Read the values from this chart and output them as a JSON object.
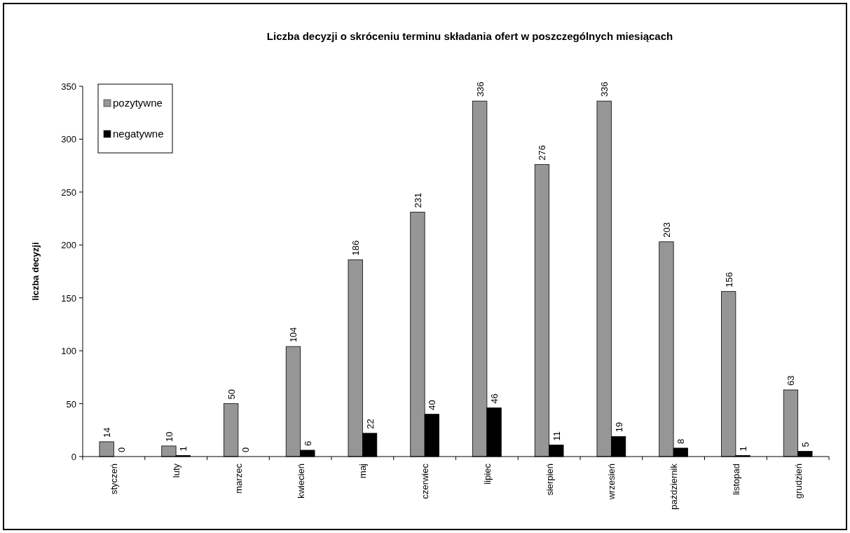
{
  "chart_data": {
    "type": "bar",
    "title": "Liczba decyzji o skróceniu terminu składania ofert w poszczególnych miesiącach",
    "ylabel": "liczba decyzji",
    "categories": [
      "styczeń",
      "luty",
      "marzec",
      "kwiecień",
      "maj",
      "czerwiec",
      "lipiec",
      "sierpień",
      "wrzesień",
      "październik",
      "listopad",
      "grudzień"
    ],
    "series": [
      {
        "name": "pozytywne",
        "color": "#969696",
        "values": [
          14,
          10,
          50,
          104,
          186,
          231,
          336,
          276,
          336,
          203,
          156,
          63
        ]
      },
      {
        "name": "negatywne",
        "color": "#000000",
        "values": [
          0,
          1,
          0,
          6,
          22,
          40,
          46,
          11,
          19,
          8,
          1,
          5
        ]
      }
    ],
    "ylim": [
      0,
      350
    ],
    "yticks": [
      0,
      50,
      100,
      150,
      200,
      250,
      300,
      350
    ],
    "grid": false,
    "legend": "top left",
    "data_labels": true
  }
}
